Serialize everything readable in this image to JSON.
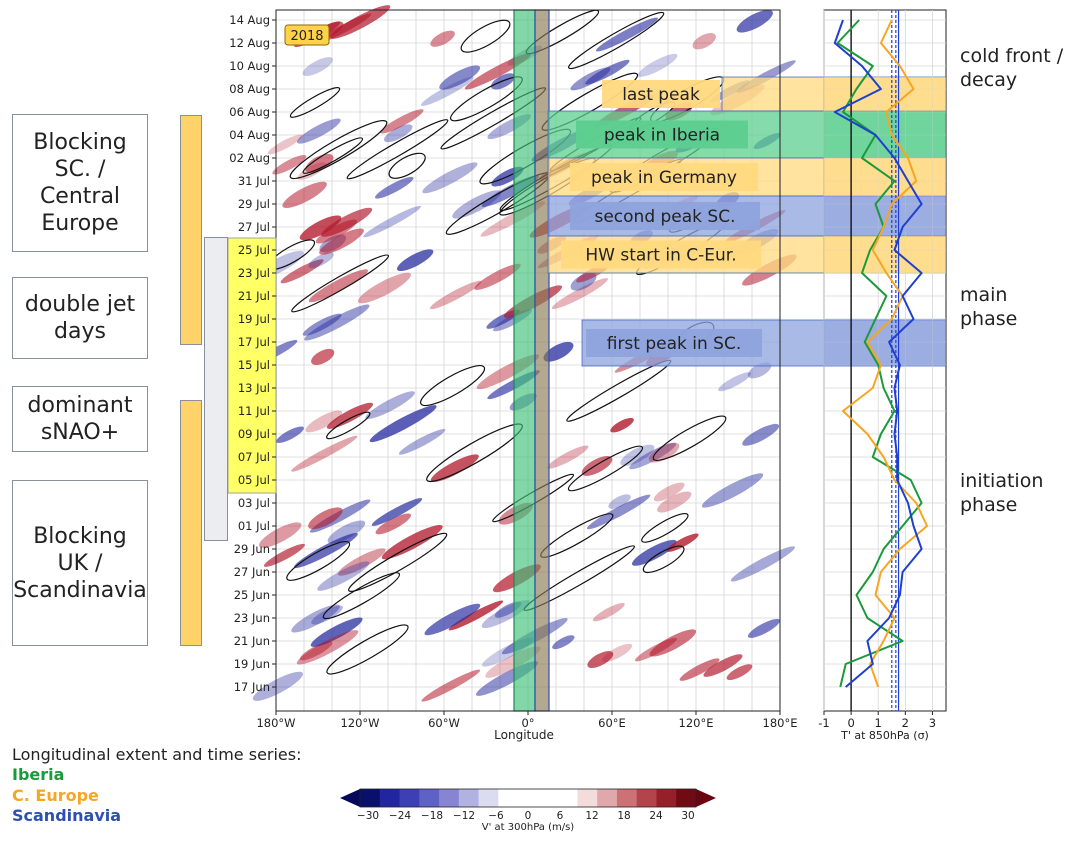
{
  "phases": [
    {
      "label": "Blocking\nSC. /\nCentral\nEurope",
      "style": "orange"
    },
    {
      "label": "double jet\ndays",
      "style": "yellow"
    },
    {
      "label": "dominant\nsNAO+",
      "style": "grey"
    },
    {
      "label": "Blocking\nUK /\nScandinavia",
      "style": "orange"
    }
  ],
  "year_badge": "2018",
  "side_labels": {
    "cold_front": "cold front /\ndecay",
    "main": "main\nphase",
    "initiation": "initiation\nphase"
  },
  "events": [
    {
      "label": "last peak",
      "color": "#ffd97f"
    },
    {
      "label": "peak in Iberia",
      "color": "#5ccf8f"
    },
    {
      "label": "peak in Germany",
      "color": "#ffd97f"
    },
    {
      "label": "second peak SC.",
      "color": "#8ea3dd"
    },
    {
      "label": "HW start in C-Eur.",
      "color": "#ffd97f"
    },
    {
      "label": "first peak in SC.",
      "color": "#8ea3dd"
    }
  ],
  "legend": {
    "title": "Longitudinal extent and time series:",
    "entries": [
      {
        "label": "Iberia",
        "color": "#1a9a3a"
      },
      {
        "label": "C. Europe",
        "color": "#f5a623"
      },
      {
        "label": "Scandinavia",
        "color": "#2f4fb0"
      }
    ]
  },
  "colors": {
    "red": "#b2182b",
    "blue": "#2a2fa0",
    "iberia": "#1a9a3a",
    "ceurope": "#f5a623",
    "scandinavia": "#1f3fd0",
    "iberia_band": "#3fc079",
    "ceurope_band": "#8a7a55"
  },
  "chart_data": [
    {
      "type": "heatmap",
      "xlabel": "Longitude",
      "ylabel": "",
      "x_ticks": [
        "180°W",
        "120°W",
        "60°W",
        "0°",
        "60°E",
        "120°E",
        "180°E"
      ],
      "x_range": [
        -180,
        180
      ],
      "y_ticks": [
        "14 Aug",
        "12 Aug",
        "10 Aug",
        "08 Aug",
        "06 Aug",
        "04 Aug",
        "02 Aug",
        "31 Jul",
        "29 Jul",
        "27 Jul",
        "25 Jul",
        "23 Jul",
        "21 Jul",
        "19 Jul",
        "17 Jul",
        "15 Jul",
        "13 Jul",
        "11 Jul",
        "09 Jul",
        "07 Jul",
        "05 Jul",
        "03 Jul",
        "01 Jul",
        "29 Jun",
        "27 Jun",
        "25 Jun",
        "23 Jun",
        "21 Jun",
        "19 Jun",
        "17 Jun"
      ],
      "highlighted_y_ticks": [
        "25 Jul",
        "23 Jul",
        "21 Jul",
        "19 Jul",
        "17 Jul",
        "15 Jul",
        "13 Jul",
        "11 Jul",
        "09 Jul",
        "07 Jul",
        "05 Jul"
      ],
      "colorbar": {
        "label": "V' at 300hPa (m/s)",
        "ticks": [
          -30,
          -24,
          -18,
          -12,
          -6,
          0,
          6,
          12,
          18,
          24,
          30
        ],
        "colors": [
          "#08106b",
          "#2125a0",
          "#3d3fb5",
          "#5f61c4",
          "#8585d2",
          "#b2b2e2",
          "#dcdcf0",
          "#ffffff",
          "#ffffff",
          "#ffffff",
          "#ffffff",
          "#f2dcdc",
          "#e0a8aa",
          "#cc7276",
          "#b4444c",
          "#96202a",
          "#700a14"
        ]
      },
      "longitude_bands": [
        {
          "name": "Iberia",
          "range": [
            -10,
            5
          ]
        },
        {
          "name": "C. Europe",
          "range": [
            5,
            15
          ]
        }
      ]
    },
    {
      "type": "line",
      "xlabel": "T' at 850hPa (σ)",
      "x_ticks": [
        "-1",
        "0",
        "1",
        "2",
        "3"
      ],
      "x_range": [
        -1,
        3.5
      ],
      "series": [
        {
          "name": "Iberia",
          "values": [
            0.3,
            -0.5,
            0.8,
            0.2,
            -0.3,
            0.9,
            0.4,
            1.6,
            0.9,
            1.2,
            0.7,
            0.4,
            1.3,
            0.9,
            0.5,
            1.0,
            1.2,
            1.6,
            1.1,
            0.8,
            2.2,
            2.6,
            1.9,
            1.2,
            0.8,
            0.2,
            0.6,
            1.9,
            -0.2,
            -0.4
          ]
        },
        {
          "name": "C. Europe",
          "values": [
            1.5,
            1.1,
            1.8,
            2.3,
            1.3,
            1.5,
            2.1,
            2.4,
            1.5,
            1.2,
            0.8,
            1.3,
            1.9,
            1.5,
            0.6,
            1.1,
            0.8,
            -0.3,
            0.6,
            1.2,
            1.6,
            2.4,
            2.8,
            1.8,
            1.1,
            0.9,
            1.6,
            1.2,
            0.7,
            1.0
          ]
        },
        {
          "name": "Scandinavia",
          "values": [
            -0.3,
            -0.6,
            0.4,
            1.1,
            -0.6,
            0.9,
            1.6,
            2.1,
            2.6,
            1.9,
            1.6,
            2.6,
            1.9,
            2.3,
            1.4,
            1.8,
            1.6,
            1.7,
            1.6,
            1.7,
            1.7,
            2.1,
            2.3,
            2.6,
            1.9,
            1.8,
            1.4,
            0.6,
            0.8,
            -0.2
          ]
        }
      ],
      "reference_lines": [
        0,
        1.5,
        1.65,
        1.75
      ]
    }
  ]
}
